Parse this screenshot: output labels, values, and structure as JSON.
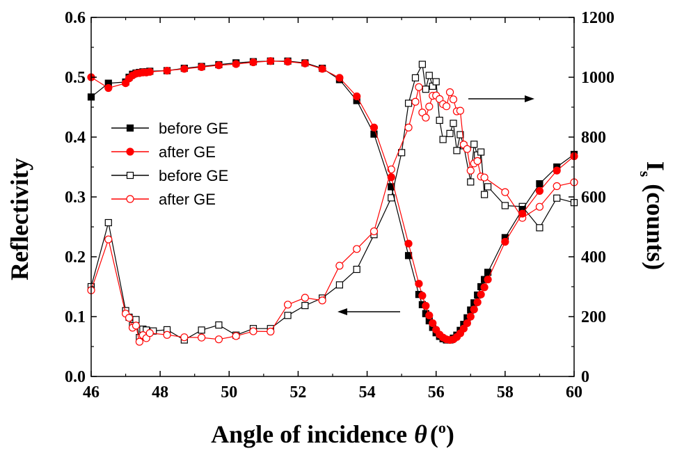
{
  "chart_data": {
    "type": "scatter",
    "title": "",
    "xlabel": "Angle of incidence",
    "xlabel_symbol": "θ",
    "xlabel_unit": "o",
    "ylabel_left": "Reflectivity",
    "ylabel_right_main": "I",
    "ylabel_right_sub": "s",
    "ylabel_right_unit": "(counts)",
    "xlim": [
      46,
      60
    ],
    "ylim_left": [
      0.0,
      0.6
    ],
    "ylim_right": [
      0,
      1200
    ],
    "xticks": [
      "46",
      "48",
      "50",
      "52",
      "54",
      "56",
      "58",
      "60"
    ],
    "yticks_left": [
      "0.0",
      "0.1",
      "0.2",
      "0.3",
      "0.4",
      "0.5",
      "0.6"
    ],
    "yticks_right": [
      "0",
      "200",
      "400",
      "600",
      "800",
      "1000",
      "1200"
    ],
    "legend_position": "left",
    "series": [
      {
        "name": "before GE",
        "axis": "left",
        "color": "#000000",
        "marker": "square-filled",
        "points": [
          [
            46.0,
            0.467
          ],
          [
            46.5,
            0.49
          ],
          [
            47.0,
            0.492
          ],
          [
            47.1,
            0.5
          ],
          [
            47.2,
            0.505
          ],
          [
            47.3,
            0.507
          ],
          [
            47.4,
            0.508
          ],
          [
            47.5,
            0.509
          ],
          [
            47.6,
            0.509
          ],
          [
            47.7,
            0.51
          ],
          [
            48.2,
            0.511
          ],
          [
            48.7,
            0.515
          ],
          [
            49.2,
            0.518
          ],
          [
            49.7,
            0.521
          ],
          [
            50.2,
            0.524
          ],
          [
            50.7,
            0.526
          ],
          [
            51.2,
            0.527
          ],
          [
            51.7,
            0.527
          ],
          [
            52.2,
            0.524
          ],
          [
            52.7,
            0.515
          ],
          [
            53.2,
            0.496
          ],
          [
            53.7,
            0.461
          ],
          [
            54.2,
            0.405
          ],
          [
            54.7,
            0.317
          ],
          [
            55.2,
            0.202
          ],
          [
            55.5,
            0.137
          ],
          [
            55.6,
            0.12
          ],
          [
            55.7,
            0.105
          ],
          [
            55.8,
            0.093
          ],
          [
            55.9,
            0.082
          ],
          [
            56.0,
            0.073
          ],
          [
            56.1,
            0.067
          ],
          [
            56.2,
            0.063
          ],
          [
            56.3,
            0.061
          ],
          [
            56.4,
            0.061
          ],
          [
            56.5,
            0.064
          ],
          [
            56.6,
            0.069
          ],
          [
            56.7,
            0.077
          ],
          [
            56.8,
            0.087
          ],
          [
            56.9,
            0.098
          ],
          [
            57.0,
            0.111
          ],
          [
            57.1,
            0.123
          ],
          [
            57.2,
            0.136
          ],
          [
            57.3,
            0.15
          ],
          [
            57.4,
            0.162
          ],
          [
            57.5,
            0.174
          ],
          [
            58.0,
            0.232
          ],
          [
            58.5,
            0.279
          ],
          [
            59.0,
            0.322
          ],
          [
            59.5,
            0.35
          ],
          [
            60.0,
            0.371
          ]
        ]
      },
      {
        "name": "after GE",
        "axis": "left",
        "color": "#ff0000",
        "marker": "circle-filled",
        "points": [
          [
            46.0,
            0.5
          ],
          [
            46.5,
            0.482
          ],
          [
            47.0,
            0.49
          ],
          [
            47.1,
            0.498
          ],
          [
            47.2,
            0.503
          ],
          [
            47.3,
            0.506
          ],
          [
            47.4,
            0.507
          ],
          [
            47.5,
            0.508
          ],
          [
            47.6,
            0.508
          ],
          [
            47.7,
            0.509
          ],
          [
            48.2,
            0.511
          ],
          [
            48.7,
            0.514
          ],
          [
            49.2,
            0.517
          ],
          [
            49.7,
            0.52
          ],
          [
            50.2,
            0.522
          ],
          [
            50.7,
            0.525
          ],
          [
            51.2,
            0.527
          ],
          [
            51.7,
            0.526
          ],
          [
            52.2,
            0.523
          ],
          [
            52.7,
            0.514
          ],
          [
            53.2,
            0.499
          ],
          [
            53.7,
            0.468
          ],
          [
            54.2,
            0.416
          ],
          [
            54.7,
            0.333
          ],
          [
            55.2,
            0.222
          ],
          [
            55.5,
            0.155
          ],
          [
            55.6,
            0.135
          ],
          [
            55.7,
            0.118
          ],
          [
            55.8,
            0.102
          ],
          [
            55.9,
            0.089
          ],
          [
            56.0,
            0.078
          ],
          [
            56.1,
            0.07
          ],
          [
            56.2,
            0.065
          ],
          [
            56.3,
            0.062
          ],
          [
            56.4,
            0.061
          ],
          [
            56.5,
            0.062
          ],
          [
            56.6,
            0.066
          ],
          [
            56.7,
            0.072
          ],
          [
            56.8,
            0.08
          ],
          [
            56.9,
            0.089
          ],
          [
            57.0,
            0.1
          ],
          [
            57.1,
            0.112
          ],
          [
            57.2,
            0.124
          ],
          [
            57.3,
            0.137
          ],
          [
            57.4,
            0.149
          ],
          [
            57.5,
            0.162
          ],
          [
            58.0,
            0.225
          ],
          [
            58.5,
            0.272
          ],
          [
            59.0,
            0.31
          ],
          [
            59.5,
            0.344
          ],
          [
            60.0,
            0.368
          ]
        ]
      },
      {
        "name": "before GE",
        "axis": "right",
        "color": "#000000",
        "marker": "square-open",
        "points": [
          [
            46.0,
            300
          ],
          [
            46.5,
            514
          ],
          [
            47.0,
            220
          ],
          [
            47.1,
            198
          ],
          [
            47.2,
            170
          ],
          [
            47.3,
            190
          ],
          [
            47.4,
            130
          ],
          [
            47.5,
            158
          ],
          [
            47.6,
            155
          ],
          [
            47.8,
            152
          ],
          [
            48.2,
            156
          ],
          [
            48.7,
            122
          ],
          [
            49.2,
            155
          ],
          [
            49.7,
            172
          ],
          [
            50.2,
            138
          ],
          [
            50.7,
            160
          ],
          [
            51.2,
            160
          ],
          [
            51.7,
            204
          ],
          [
            52.2,
            237
          ],
          [
            52.7,
            262
          ],
          [
            53.2,
            306
          ],
          [
            53.7,
            358
          ],
          [
            54.2,
            474
          ],
          [
            54.7,
            597
          ],
          [
            55.0,
            748
          ],
          [
            55.2,
            913
          ],
          [
            55.4,
            998
          ],
          [
            55.6,
            1043
          ],
          [
            55.7,
            960
          ],
          [
            55.8,
            1006
          ],
          [
            55.9,
            970
          ],
          [
            56.0,
            985
          ],
          [
            56.1,
            856
          ],
          [
            56.2,
            792
          ],
          [
            56.4,
            812
          ],
          [
            56.5,
            846
          ],
          [
            56.6,
            755
          ],
          [
            56.7,
            808
          ],
          [
            56.8,
            771
          ],
          [
            57.0,
            650
          ],
          [
            57.1,
            776
          ],
          [
            57.2,
            740
          ],
          [
            57.3,
            750
          ],
          [
            57.4,
            608
          ],
          [
            57.5,
            634
          ],
          [
            58.0,
            571
          ],
          [
            58.5,
            568
          ],
          [
            59.0,
            497
          ],
          [
            59.5,
            596
          ],
          [
            60.0,
            581
          ]
        ]
      },
      {
        "name": "after GE",
        "axis": "right",
        "color": "#ff0000",
        "marker": "circle-open",
        "points": [
          [
            46.0,
            288
          ],
          [
            46.5,
            458
          ],
          [
            47.0,
            210
          ],
          [
            47.1,
            196
          ],
          [
            47.2,
            163
          ],
          [
            47.3,
            170
          ],
          [
            47.4,
            116
          ],
          [
            47.5,
            138
          ],
          [
            47.6,
            128
          ],
          [
            47.7,
            145
          ],
          [
            48.2,
            139
          ],
          [
            48.7,
            131
          ],
          [
            49.2,
            130
          ],
          [
            49.7,
            124
          ],
          [
            50.2,
            135
          ],
          [
            50.7,
            151
          ],
          [
            51.2,
            150
          ],
          [
            51.7,
            240
          ],
          [
            52.2,
            263
          ],
          [
            52.7,
            254
          ],
          [
            53.2,
            370
          ],
          [
            53.7,
            426
          ],
          [
            54.2,
            485
          ],
          [
            54.7,
            692
          ],
          [
            55.2,
            832
          ],
          [
            55.4,
            918
          ],
          [
            55.5,
            967
          ],
          [
            55.6,
            882
          ],
          [
            55.7,
            865
          ],
          [
            55.8,
            902
          ],
          [
            55.9,
            938
          ],
          [
            56.0,
            939
          ],
          [
            56.1,
            927
          ],
          [
            56.2,
            910
          ],
          [
            56.3,
            903
          ],
          [
            56.4,
            950
          ],
          [
            56.5,
            926
          ],
          [
            56.6,
            886
          ],
          [
            56.7,
            888
          ],
          [
            56.8,
            775
          ],
          [
            56.9,
            760
          ],
          [
            57.0,
            688
          ],
          [
            57.1,
            712
          ],
          [
            57.2,
            720
          ],
          [
            57.3,
            668
          ],
          [
            57.4,
            665
          ],
          [
            58.0,
            616
          ],
          [
            58.5,
            530
          ],
          [
            59.0,
            567
          ],
          [
            59.5,
            636
          ],
          [
            60.0,
            649
          ]
        ]
      }
    ]
  }
}
